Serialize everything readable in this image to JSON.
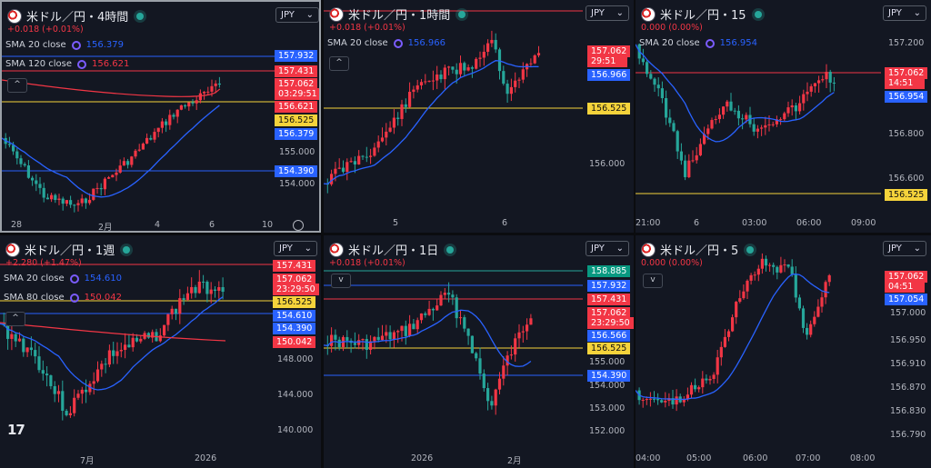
{
  "colors": {
    "up": "#f23645",
    "down": "#26a69a",
    "sma_short": "#2962ff",
    "sma_long": "#f23645",
    "support": "#f5d33b",
    "panel": "#131722"
  },
  "panels": [
    {
      "title": "米ドル／円・4時間",
      "change": "+0.018 (+0.01%)",
      "currency": "JPY",
      "active": true,
      "indicators": [
        {
          "label": "SMA 20 close",
          "value": "156.379",
          "color": "blue"
        },
        {
          "label": "SMA 120 close",
          "value": "156.621",
          "color": "red"
        }
      ],
      "price_labels": [
        "155.000",
        "154.000"
      ],
      "tags": [
        {
          "text": "157.932",
          "color": "blue"
        },
        {
          "text": "157.431",
          "color": "red"
        },
        {
          "text": "157.062",
          "color": "red"
        },
        {
          "text": "03:29:51",
          "color": "red"
        },
        {
          "text": "156.621",
          "color": "red"
        },
        {
          "text": "156.525",
          "color": "yellow"
        },
        {
          "text": "156.379",
          "color": "blue"
        },
        {
          "text": "154.390",
          "color": "blue"
        }
      ],
      "time_labels": [
        "28",
        "2月",
        "4",
        "6",
        "10"
      ]
    },
    {
      "title": "米ドル／円・1時間",
      "change": "+0.018 (+0.01%)",
      "currency": "JPY",
      "active": false,
      "indicators": [
        {
          "label": "SMA 20 close",
          "value": "156.966",
          "color": "blue"
        }
      ],
      "price_labels": [
        "156.000"
      ],
      "tags": [
        {
          "text": "157.062",
          "color": "red"
        },
        {
          "text": "29:51",
          "color": "red"
        },
        {
          "text": "156.966",
          "color": "blue"
        },
        {
          "text": "156.525",
          "color": "yellow"
        }
      ],
      "time_labels": [
        "5",
        "6"
      ]
    },
    {
      "title": "米ドル／円・15",
      "change": "0.000 (0.00%)",
      "currency": "JPY",
      "active": false,
      "indicators": [
        {
          "label": "SMA 20 close",
          "value": "156.954",
          "color": "blue"
        }
      ],
      "price_labels": [
        "157.200",
        "156.800",
        "156.600"
      ],
      "tags": [
        {
          "text": "157.062",
          "color": "red"
        },
        {
          "text": "14:51",
          "color": "red"
        },
        {
          "text": "156.954",
          "color": "blue"
        },
        {
          "text": "156.525",
          "color": "yellow"
        }
      ],
      "time_labels": [
        "21:00",
        "6",
        "03:00",
        "06:00",
        "09:00"
      ]
    },
    {
      "title": "米ドル／円・1週",
      "change": "+2.280 (+1.47%)",
      "currency": "JPY",
      "active": false,
      "indicators": [
        {
          "label": "SMA 20 close",
          "value": "154.610",
          "color": "blue"
        },
        {
          "label": "SMA 80 close",
          "value": "150.042",
          "color": "red"
        }
      ],
      "price_labels": [
        "148.000",
        "144.000",
        "140.000"
      ],
      "tags": [
        {
          "text": "157.431",
          "color": "red"
        },
        {
          "text": "157.062",
          "color": "red"
        },
        {
          "text": "23:29:50",
          "color": "red"
        },
        {
          "text": "156.525",
          "color": "yellow"
        },
        {
          "text": "154.610",
          "color": "blue"
        },
        {
          "text": "154.390",
          "color": "blue"
        },
        {
          "text": "150.042",
          "color": "red"
        }
      ],
      "time_labels": [
        "7月",
        "2026"
      ]
    },
    {
      "title": "米ドル／円・1日",
      "change": "+0.018 (+0.01%)",
      "currency": "JPY",
      "active": false,
      "indicators": [],
      "price_labels": [
        "155.000",
        "154.000",
        "153.000",
        "152.000"
      ],
      "tags": [
        {
          "text": "158.885",
          "color": "green"
        },
        {
          "text": "157.932",
          "color": "blue"
        },
        {
          "text": "157.431",
          "color": "red"
        },
        {
          "text": "157.062",
          "color": "red"
        },
        {
          "text": "23:29:50",
          "color": "red"
        },
        {
          "text": "156.566",
          "color": "blue"
        },
        {
          "text": "156.525",
          "color": "yellow"
        },
        {
          "text": "154.390",
          "color": "blue"
        }
      ],
      "time_labels": [
        "2026",
        "2月"
      ]
    },
    {
      "title": "米ドル／円・5",
      "change": "0.000 (0.00%)",
      "currency": "JPY",
      "active": false,
      "indicators": [],
      "price_labels": [
        "157.000",
        "156.950",
        "156.910",
        "156.870",
        "156.830",
        "156.790"
      ],
      "tags": [
        {
          "text": "157.062",
          "color": "red"
        },
        {
          "text": "04:51",
          "color": "red"
        },
        {
          "text": "157.054",
          "color": "blue"
        }
      ],
      "time_labels": [
        "04:00",
        "05:00",
        "06:00",
        "07:00",
        "08:00"
      ]
    }
  ],
  "collapse_glyph": "^",
  "collapse_down_glyph": "v",
  "chevron_glyph": "⌄",
  "logo_text": "17"
}
